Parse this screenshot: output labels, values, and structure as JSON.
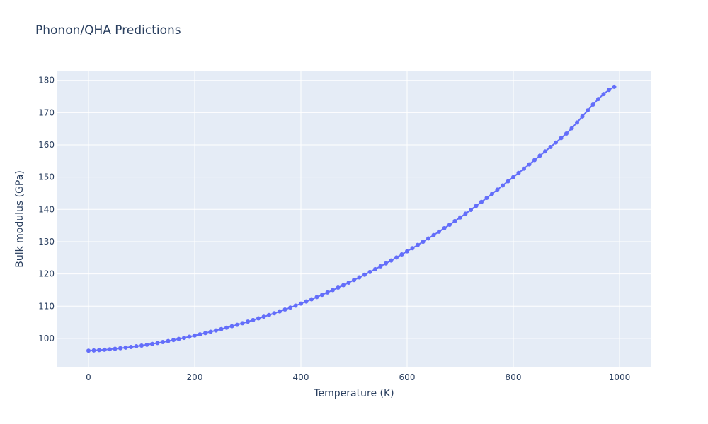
{
  "chart_data": {
    "type": "line",
    "title": "Phonon/QHA Predictions",
    "xlabel": "Temperature (K)",
    "ylabel": "Bulk modulus (GPa)",
    "xlim": [
      -60,
      1060
    ],
    "ylim": [
      91,
      183
    ],
    "xticks": [
      0,
      200,
      400,
      600,
      800,
      1000
    ],
    "yticks": [
      100,
      110,
      120,
      130,
      140,
      150,
      160,
      170,
      180
    ],
    "grid": true,
    "series": [
      {
        "mode": "lines+markers",
        "color": "#636efa",
        "x_start": 0,
        "x_step": 10,
        "x_end": 990,
        "anchor_points": [
          [
            0,
            96.2
          ],
          [
            100,
            97.8
          ],
          [
            200,
            100.9
          ],
          [
            300,
            105.2
          ],
          [
            400,
            110.8
          ],
          [
            500,
            118.1
          ],
          [
            600,
            127.0
          ],
          [
            700,
            137.5
          ],
          [
            800,
            150.0
          ],
          [
            900,
            163.5
          ],
          [
            990,
            178.0
          ]
        ]
      }
    ],
    "colors": {
      "background": "#e5ecf6",
      "grid": "#ffffff",
      "line": "#636efa",
      "text": "#2a3f5f"
    }
  }
}
